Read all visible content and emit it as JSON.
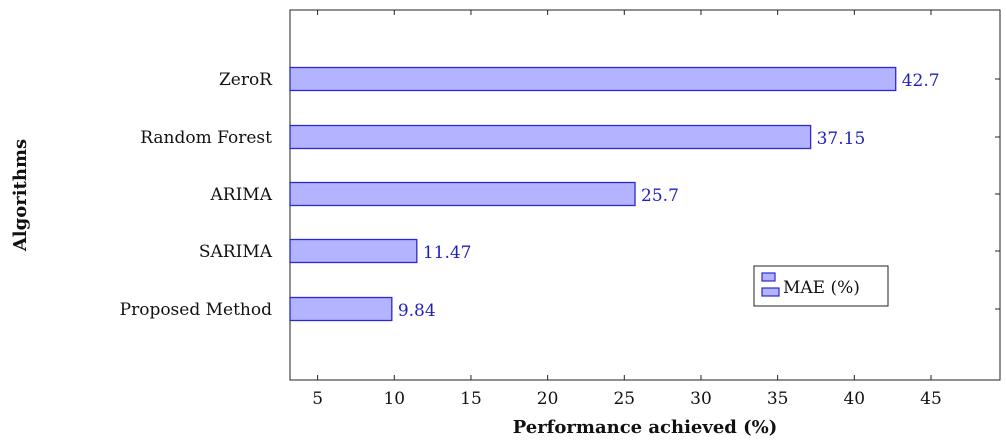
{
  "chart_data": {
    "type": "bar",
    "orientation": "horizontal",
    "categories": [
      "ZeroR",
      "Random Forest",
      "ARIMA",
      "SARIMA",
      "Proposed Method"
    ],
    "series": [
      {
        "name": "MAE (%)",
        "values": [
          42.7,
          37.15,
          25.7,
          11.47,
          9.84
        ]
      }
    ],
    "data_labels": [
      "42.7",
      "37.15",
      "25.7",
      "11.47",
      "9.84"
    ],
    "xlabel": "Performance achieved (%)",
    "ylabel": "Algorithms",
    "xlim": [
      3.2,
      49.5
    ],
    "xticks": [
      5,
      10,
      15,
      20,
      25,
      30,
      35,
      40,
      45
    ],
    "grid": false,
    "legend_position": "lower-right",
    "colors": {
      "bar_fill": "#b3b3ff",
      "bar_stroke": "#2b2bcc",
      "label": "#1f1fbf"
    }
  }
}
